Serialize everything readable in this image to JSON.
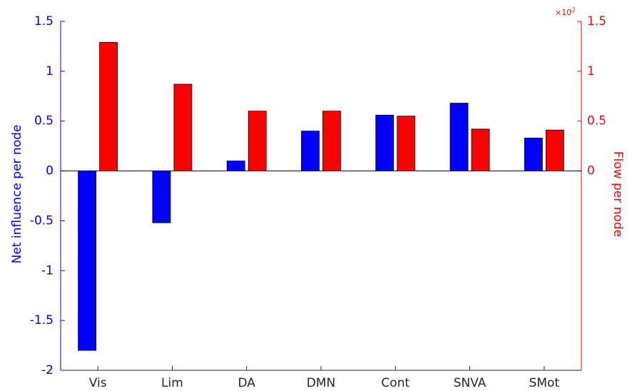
{
  "chart_data": {
    "type": "bar",
    "categories": [
      "Vis",
      "Lim",
      "DA",
      "DMN",
      "Cont",
      "SNVA",
      "SMot"
    ],
    "series": [
      {
        "name": "Net influence per node",
        "color": "#0000ff",
        "axis": "y",
        "values": [
          -1.8,
          -0.52,
          0.1,
          0.4,
          0.56,
          0.68,
          0.33
        ]
      },
      {
        "name": "Flow per node",
        "color": "#ff0000",
        "axis": "y2",
        "values": [
          0.0129,
          0.0087,
          0.006,
          0.006,
          0.0055,
          0.0042,
          0.0041
        ]
      }
    ],
    "ylabel": "Net influence per node",
    "y2label": "Flow per node",
    "ylim": [
      -2,
      1.5
    ],
    "yticks": [
      -2,
      -1.5,
      -1,
      -0.5,
      0,
      0.5,
      1,
      1.5
    ],
    "y2lim": [
      -0.02,
      0.015
    ],
    "y2ticks": [
      {
        "value": 0,
        "label": "0"
      },
      {
        "value": 0.005,
        "label": "0.5"
      },
      {
        "value": 0.01,
        "label": "1"
      },
      {
        "value": 0.015,
        "label": "1.5"
      }
    ],
    "y2_multiplier": {
      "base": "×10",
      "exponent": "-2"
    }
  }
}
